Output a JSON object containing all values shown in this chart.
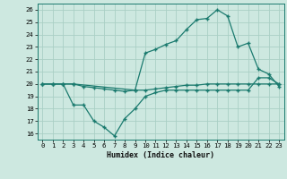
{
  "xlabel": "Humidex (Indice chaleur)",
  "bg_color": "#cde8e0",
  "grid_color": "#aacfc5",
  "line_color": "#1a7a6e",
  "xlim": [
    -0.5,
    23.5
  ],
  "ylim": [
    15.5,
    26.5
  ],
  "xticks": [
    0,
    1,
    2,
    3,
    4,
    5,
    6,
    7,
    8,
    9,
    10,
    11,
    12,
    13,
    14,
    15,
    16,
    17,
    18,
    19,
    20,
    21,
    22,
    23
  ],
  "yticks": [
    16,
    17,
    18,
    19,
    20,
    21,
    22,
    23,
    24,
    25,
    26
  ],
  "line_top_x": [
    0,
    1,
    2,
    3,
    9,
    10,
    11,
    12,
    13,
    14,
    15,
    16,
    17,
    18,
    19,
    20,
    21,
    22,
    23
  ],
  "line_top_y": [
    20,
    20,
    20,
    20,
    19.5,
    22.5,
    22.8,
    23.2,
    23.5,
    24.4,
    25.2,
    25.3,
    26.0,
    25.5,
    23.0,
    23.3,
    21.2,
    20.8,
    19.8
  ],
  "line_mid_x": [
    0,
    1,
    2,
    3,
    4,
    5,
    6,
    7,
    8,
    9,
    10,
    11,
    12,
    13,
    14,
    15,
    16,
    17,
    18,
    19,
    20,
    21,
    22,
    23
  ],
  "line_mid_y": [
    20.0,
    20.0,
    20.0,
    20.0,
    19.8,
    19.7,
    19.6,
    19.5,
    19.4,
    19.5,
    19.5,
    19.6,
    19.7,
    19.8,
    19.9,
    19.9,
    20.0,
    20.0,
    20.0,
    20.0,
    20.0,
    20.0,
    20.0,
    20.0
  ],
  "line_bot_x": [
    0,
    1,
    2,
    3,
    4,
    5,
    6,
    7,
    8,
    9,
    10,
    11,
    12,
    13,
    14,
    15,
    16,
    17,
    18,
    19,
    20,
    21,
    22,
    23
  ],
  "line_bot_y": [
    20.0,
    20.0,
    20.0,
    18.3,
    18.3,
    17.0,
    16.5,
    15.8,
    17.2,
    18.0,
    19.0,
    19.3,
    19.5,
    19.5,
    19.5,
    19.5,
    19.5,
    19.5,
    19.5,
    19.5,
    19.5,
    20.5,
    20.5,
    20.0
  ]
}
